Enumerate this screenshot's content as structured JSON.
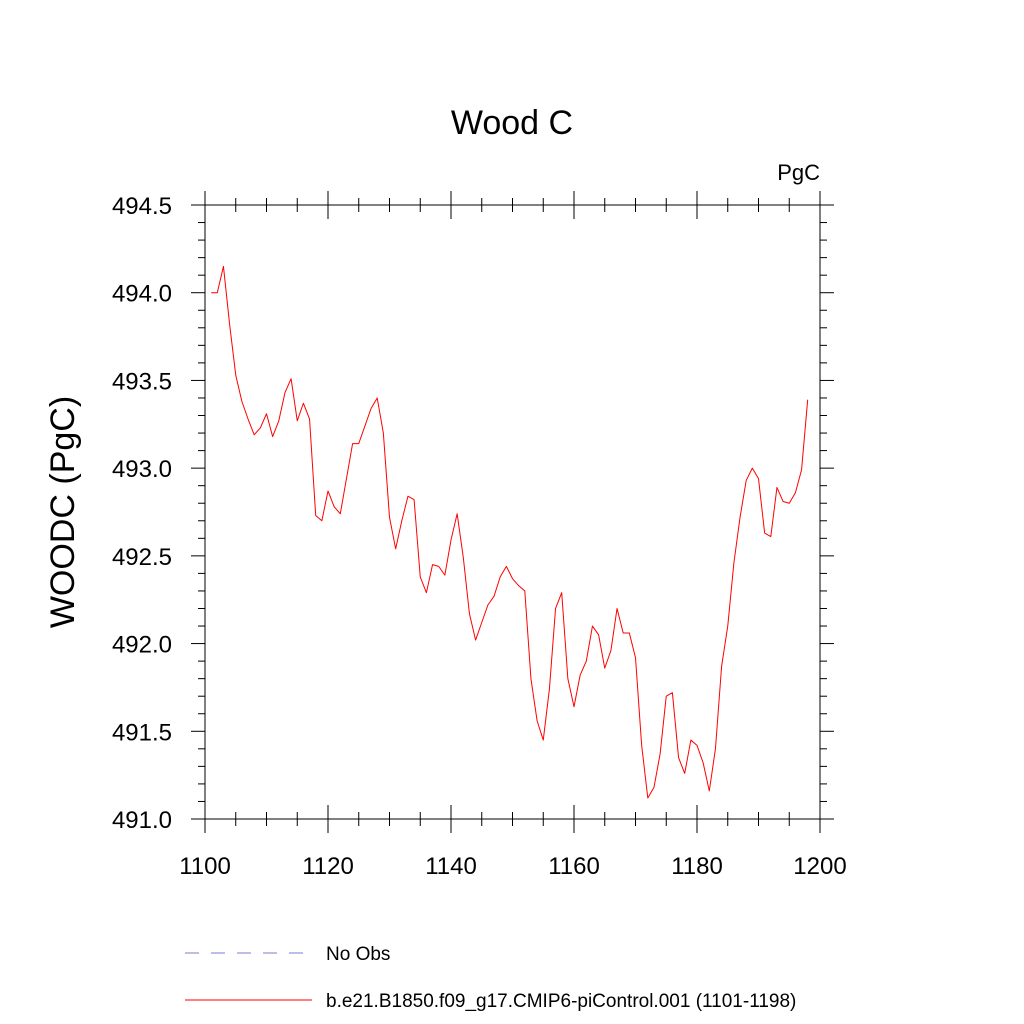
{
  "chart_data": {
    "type": "line",
    "title": "Wood C",
    "units": "PgC",
    "ylabel": "WOODC  (PgC)",
    "xlabel": "",
    "xlim": [
      1100,
      1200
    ],
    "ylim": [
      491.0,
      494.5
    ],
    "x_ticks": [
      1100,
      1120,
      1140,
      1160,
      1180,
      1200
    ],
    "x_tick_labels": [
      "1100",
      "1120",
      "1140",
      "1160",
      "1180",
      "1200"
    ],
    "y_ticks": [
      491.0,
      491.5,
      492.0,
      492.5,
      493.0,
      493.5,
      494.0,
      494.5
    ],
    "y_tick_labels": [
      "491.0",
      "491.5",
      "492.0",
      "492.5",
      "493.0",
      "493.5",
      "494.0",
      "494.5"
    ],
    "grid": false,
    "legend_position": "bottom",
    "series": [
      {
        "name": "b.e21.B1850.f09_g17.CMIP6-piControl.001 (1101-1198)",
        "color": "#ff0000",
        "style": "solid",
        "x": [
          1101,
          1102,
          1103,
          1104,
          1105,
          1106,
          1107,
          1108,
          1109,
          1110,
          1111,
          1112,
          1113,
          1114,
          1115,
          1116,
          1117,
          1118,
          1119,
          1120,
          1121,
          1122,
          1123,
          1124,
          1125,
          1126,
          1127,
          1128,
          1129,
          1130,
          1131,
          1132,
          1133,
          1134,
          1135,
          1136,
          1137,
          1138,
          1139,
          1140,
          1141,
          1142,
          1143,
          1144,
          1145,
          1146,
          1147,
          1148,
          1149,
          1150,
          1151,
          1152,
          1153,
          1154,
          1155,
          1156,
          1157,
          1158,
          1159,
          1160,
          1161,
          1162,
          1163,
          1164,
          1165,
          1166,
          1167,
          1168,
          1169,
          1170,
          1171,
          1172,
          1173,
          1174,
          1175,
          1176,
          1177,
          1178,
          1179,
          1180,
          1181,
          1182,
          1183,
          1184,
          1185,
          1186,
          1187,
          1188,
          1189,
          1190,
          1191,
          1192,
          1193,
          1194,
          1195,
          1196,
          1197,
          1198
        ],
        "values": [
          494.0,
          494.0,
          494.15,
          493.82,
          493.53,
          493.38,
          493.28,
          493.19,
          493.23,
          493.31,
          493.18,
          493.27,
          493.43,
          493.51,
          493.27,
          493.37,
          493.28,
          492.73,
          492.7,
          492.87,
          492.78,
          492.74,
          492.94,
          493.14,
          493.14,
          493.24,
          493.34,
          493.4,
          493.2,
          492.72,
          492.54,
          492.7,
          492.84,
          492.82,
          492.38,
          492.29,
          492.45,
          492.44,
          492.39,
          492.59,
          492.74,
          492.49,
          492.17,
          492.02,
          492.12,
          492.22,
          492.27,
          492.38,
          492.44,
          492.37,
          492.33,
          492.3,
          491.8,
          491.56,
          491.45,
          491.74,
          492.2,
          492.29,
          491.8,
          491.64,
          491.82,
          491.9,
          492.1,
          492.05,
          491.86,
          491.96,
          492.2,
          492.06,
          492.06,
          491.92,
          491.42,
          491.12,
          491.18,
          491.37,
          491.7,
          491.72,
          491.35,
          491.26,
          491.45,
          491.42,
          491.32,
          491.16,
          491.4,
          491.87,
          492.1,
          492.46,
          492.72,
          492.93,
          493.0,
          492.94,
          492.63,
          492.61,
          492.89,
          492.81,
          492.8,
          492.86,
          492.99,
          493.39
        ]
      }
    ]
  },
  "legend": {
    "items": [
      {
        "label": "No Obs",
        "color": "#7b7bd6",
        "style": "dashed"
      },
      {
        "label": "b.e21.B1850.f09_g17.CMIP6-piControl.001 (1101-1198)",
        "color": "#ff0000",
        "style": "solid"
      }
    ]
  }
}
